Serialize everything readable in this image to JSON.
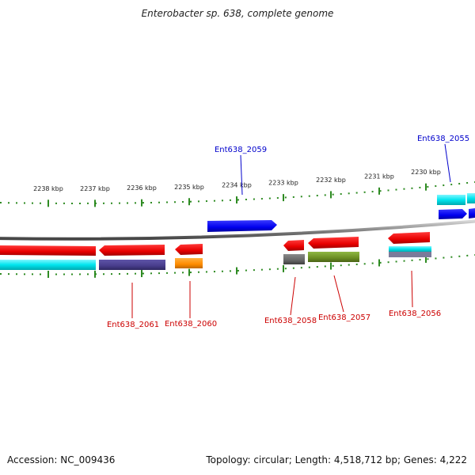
{
  "title": "Enterobacter sp. 638, complete genome",
  "footer": {
    "accession": "Accession: NC_009436",
    "info": "Topology: circular; Length: 4,518,712 bp; Genes: 4,222"
  },
  "ruler": {
    "labels": [
      "2238 kbp",
      "2237 kbp",
      "2236 kbp",
      "2235 kbp",
      "2234 kbp",
      "2233 kbp",
      "2232 kbp",
      "2231 kbp",
      "2230 kbp"
    ]
  },
  "genes": [
    {
      "name": "Ent638_2059",
      "strand": "forward",
      "color": "#0000ff"
    },
    {
      "name": "Ent638_2055",
      "strand": "forward",
      "color": "#0000ff"
    },
    {
      "name": "Ent638_2061",
      "strand": "reverse",
      "color": "#ff0000"
    },
    {
      "name": "Ent638_2060",
      "strand": "reverse",
      "color": "#ff0000"
    },
    {
      "name": "Ent638_2058",
      "strand": "reverse",
      "color": "#ff0000"
    },
    {
      "name": "Ent638_2057",
      "strand": "reverse",
      "color": "#ff0000"
    },
    {
      "name": "Ent638_2056",
      "strand": "reverse",
      "color": "#ff0000"
    }
  ],
  "colors": {
    "forward_gene": "#0000ff",
    "reverse_gene": "#ff0000",
    "forward_label": "#0000cc",
    "reverse_label": "#cc0000",
    "cds_cyan": "#00e5ee",
    "cds_slate": "#483d8b",
    "cds_orange": "#ff8c00",
    "cds_gray": "#666666",
    "cds_olive": "#6b8e23",
    "tick_green": "#2e8b22",
    "backbone": "#8a8a8a"
  }
}
